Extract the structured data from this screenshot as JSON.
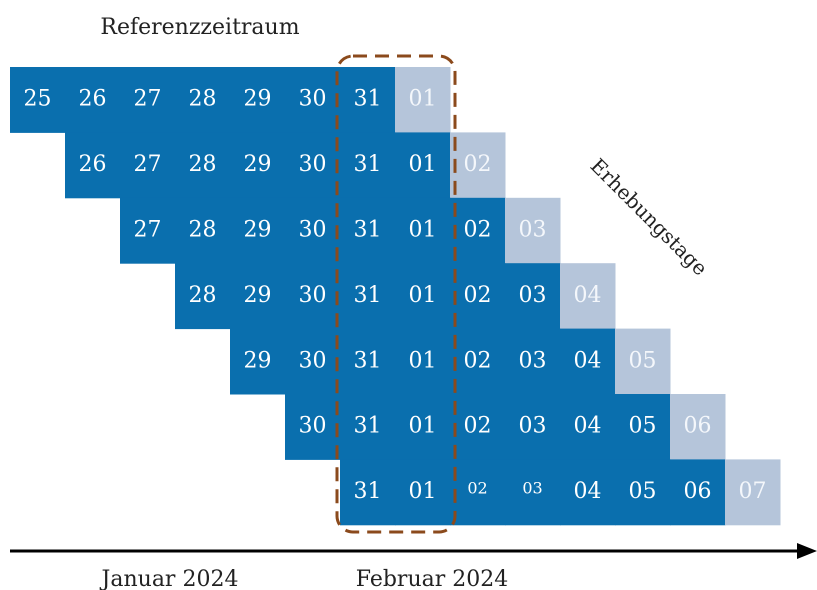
{
  "header": {
    "title": "Referenzzeitraum"
  },
  "side_label": "Erhebungstage",
  "rows": [
    [
      "25",
      "26",
      "27",
      "28",
      "29",
      "30",
      "31",
      "01"
    ],
    [
      "26",
      "27",
      "28",
      "29",
      "30",
      "31",
      "01",
      "02"
    ],
    [
      "27",
      "28",
      "29",
      "30",
      "31",
      "01",
      "02",
      "03"
    ],
    [
      "28",
      "29",
      "30",
      "31",
      "01",
      "02",
      "03",
      "04"
    ],
    [
      "29",
      "30",
      "31",
      "01",
      "02",
      "03",
      "04",
      "05"
    ],
    [
      "30",
      "31",
      "01",
      "02",
      "03",
      "04",
      "05",
      "06"
    ],
    [
      "31",
      "01",
      "02",
      "03",
      "04",
      "05",
      "06",
      "07"
    ]
  ],
  "axis": {
    "labels": [
      "Januar 2024",
      "Februar 2024"
    ]
  }
}
